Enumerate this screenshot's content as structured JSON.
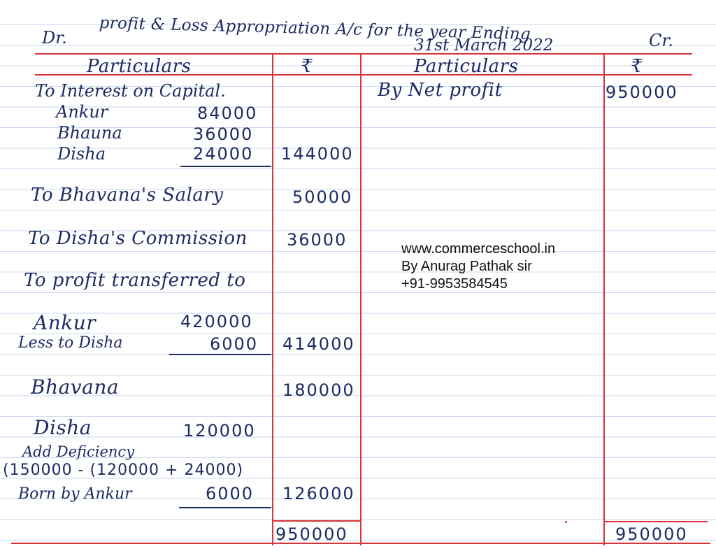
{
  "heading": {
    "dr": "Dr.",
    "title": "profit & Loss Appropriation A/c for the year Ending",
    "date": "31st March 2022",
    "cr": "Cr."
  },
  "columns": {
    "left_particulars": "Particulars",
    "left_amount": "₹",
    "right_particulars": "Particulars",
    "right_amount": "₹"
  },
  "debit": {
    "interest_on_capital": {
      "label": "To Interest on Capital.",
      "ankur_label": "Ankur",
      "ankur_value": "84000",
      "bhauna_label": "Bhauna",
      "bhauna_value": "36000",
      "disha_label": "Disha",
      "disha_value": "24000",
      "total": "144000"
    },
    "bhavana_salary": {
      "label": "To Bhavana's Salary",
      "amount": "50000"
    },
    "disha_commission": {
      "label": "To Disha's Commission",
      "amount": "36000"
    },
    "profit_transferred": {
      "label": "To profit transferred to",
      "ankur_label": "Ankur",
      "ankur_value": "420000",
      "less_label": "Less to Disha",
      "less_value": "6000",
      "ankur_total": "414000",
      "bhavana_label": "Bhavana",
      "bhavana_total": "180000",
      "disha_label": "Disha",
      "disha_value": "120000",
      "add_label": "Add Deficiency",
      "calc": "(150000 - (120000 + 24000)",
      "borne_label": "Born by Ankur",
      "borne_value": "6000",
      "disha_total": "126000"
    },
    "total": "950000"
  },
  "credit": {
    "net_profit": {
      "label": "By Net profit",
      "amount": "950000"
    },
    "total": "950000"
  },
  "watermark": {
    "site": "www.commerceschool.in",
    "author": "By Anurag Pathak sir",
    "phone": "+91-9953584545"
  }
}
